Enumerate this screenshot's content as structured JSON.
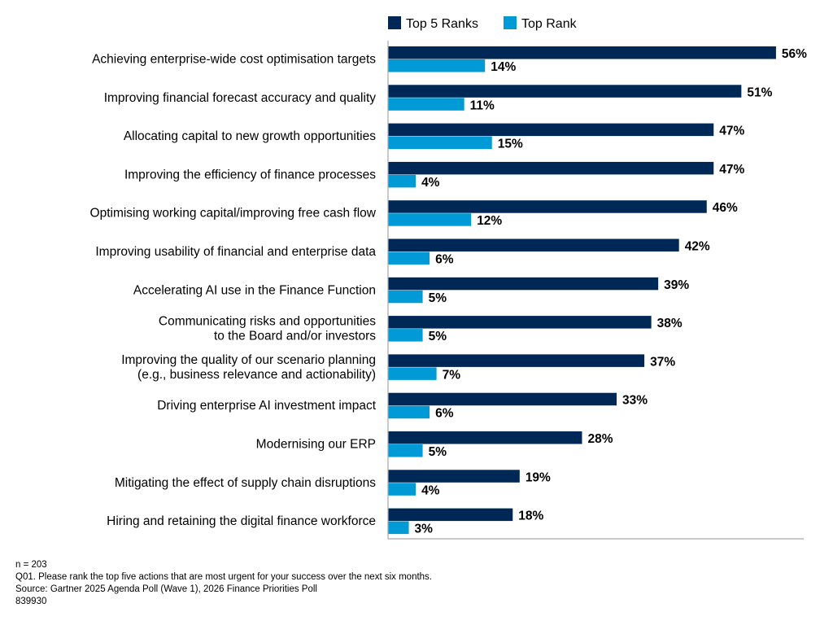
{
  "chart_data": {
    "type": "bar",
    "orientation": "horizontal",
    "title": "",
    "xlabel": "",
    "ylabel": "",
    "xlim": [
      0,
      60
    ],
    "x_ticks": [
      "0%",
      "30%",
      "60%"
    ],
    "x_tick_values": [
      0,
      30,
      60
    ],
    "grid": false,
    "legend_position": "top",
    "value_suffix": "%",
    "categories": [
      [
        "Achieving enterprise-wide cost optimisation targets"
      ],
      [
        "Improving financial forecast accuracy and quality"
      ],
      [
        "Allocating capital to new growth opportunities"
      ],
      [
        "Improving the efficiency of finance processes"
      ],
      [
        "Optimising working capital/improving free cash flow"
      ],
      [
        "Improving usability of financial and enterprise data"
      ],
      [
        "Accelerating AI use in the Finance Function"
      ],
      [
        "Communicating risks and opportunities",
        "to the Board and/or investors"
      ],
      [
        "Improving the quality of our scenario planning",
        "(e.g., business relevance and actionability)"
      ],
      [
        "Driving enterprise AI investment impact"
      ],
      [
        "Modernising our ERP"
      ],
      [
        "Mitigating the effect of supply chain disruptions"
      ],
      [
        "Hiring and retaining the digital finance workforce"
      ]
    ],
    "series": [
      {
        "name": "Top 5 Ranks",
        "color": "#002856",
        "values": [
          56,
          51,
          47,
          47,
          46,
          42,
          39,
          38,
          37,
          33,
          28,
          19,
          18
        ]
      },
      {
        "name": "Top Rank",
        "color": "#009ad6",
        "values": [
          14,
          11,
          15,
          4,
          12,
          6,
          5,
          5,
          7,
          6,
          5,
          4,
          3
        ]
      }
    ]
  },
  "footnotes": {
    "n": "n = 203",
    "question": "Q01. Please rank the top five actions that are most urgent for your success over the next six months.",
    "source": "Source: Gartner 2025 Agenda Poll (Wave 1), 2026 Finance Priorities Poll",
    "id": "839930"
  },
  "colors": {
    "axis": "#a6a6a6"
  }
}
